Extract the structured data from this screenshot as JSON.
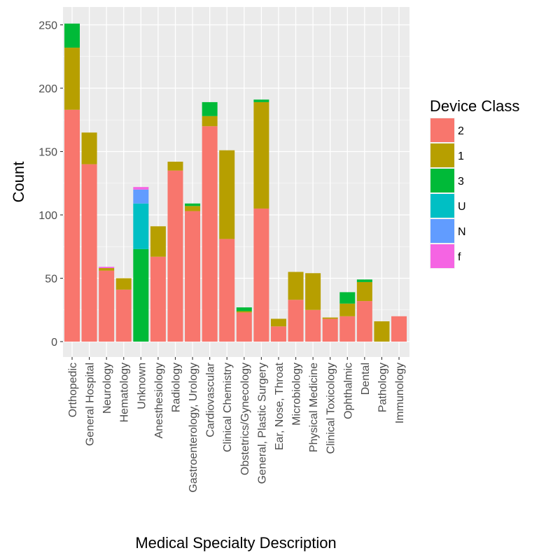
{
  "chart_data": {
    "type": "bar",
    "stacked": true,
    "title": "",
    "xlabel": "Medical Specialty Description",
    "ylabel": "Count",
    "ylim": [
      0,
      262
    ],
    "yticks": [
      0,
      50,
      100,
      150,
      200,
      250
    ],
    "grid": true,
    "legend_title": "Device Class",
    "legend_position": "right",
    "categories": [
      "Orthopedic",
      "General Hospital",
      "Neurology",
      "Hematology",
      "Unknown",
      "Anesthesiology",
      "Radiology",
      "Gastroenterology, Urology",
      "Cardiovascular",
      "Clinical Chemistry",
      "Obstetrics/Gynecology",
      "General, Plastic Surgery",
      "Ear, Nose, Throat",
      "Microbiology",
      "Physical Medicine",
      "Clinical Toxicology",
      "Ophthalmic",
      "Dental",
      "Pathology",
      "Immunology"
    ],
    "series": [
      {
        "name": "2",
        "color": "#F8766D",
        "values": [
          183,
          140,
          56,
          41,
          0,
          67,
          135,
          103,
          170,
          81,
          23,
          105,
          12,
          33,
          25,
          18,
          20,
          32,
          0,
          20
        ]
      },
      {
        "name": "1",
        "color": "#B79F00",
        "values": [
          49,
          25,
          2,
          9,
          0,
          24,
          7,
          4,
          8,
          70,
          1,
          84,
          6,
          22,
          29,
          1,
          10,
          15,
          16,
          0
        ]
      },
      {
        "name": "3",
        "color": "#00BA38",
        "values": [
          19,
          0,
          0,
          0,
          73,
          0,
          0,
          2,
          11,
          0,
          3,
          2,
          0,
          0,
          0,
          0,
          9,
          2,
          0,
          0
        ]
      },
      {
        "name": "U",
        "color": "#00BFC4",
        "values": [
          0,
          0,
          0,
          0,
          36,
          0,
          0,
          0,
          0,
          0,
          0,
          0,
          0,
          0,
          0,
          0,
          0,
          0,
          0,
          0
        ]
      },
      {
        "name": "N",
        "color": "#619CFF",
        "values": [
          0,
          0,
          0,
          0,
          11,
          0,
          0,
          0,
          0,
          0,
          0,
          0,
          0,
          0,
          0,
          0,
          0,
          0,
          0,
          0
        ]
      },
      {
        "name": "f",
        "color": "#F564E3",
        "values": [
          0,
          0,
          1,
          0,
          2,
          0,
          0,
          0,
          0,
          0,
          0,
          0,
          0,
          0,
          0,
          0,
          0,
          0,
          0,
          0
        ]
      }
    ]
  }
}
